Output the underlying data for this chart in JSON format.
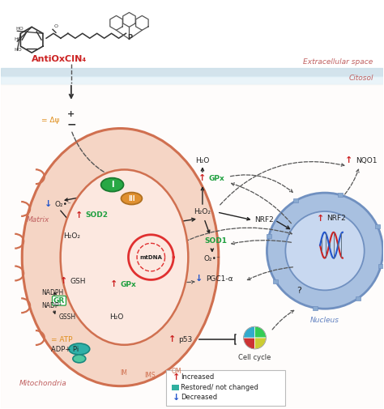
{
  "bg_color": "#ffffff",
  "extracellular_label": "Extracellular space",
  "citosol_label": "Citosol",
  "matrix_label": "Matrix",
  "mitochondria_label": "Mitochondria",
  "nucleus_label": "Nucleus",
  "IM_label": "IM",
  "IMS_label": "IMS",
  "OM_label": "OM",
  "antioxcin_label": "AntiOxCIN₄",
  "antioxcin_color": "#cc2222",
  "extracellular_color": "#c06060",
  "citosol_color": "#c06060",
  "matrix_color": "#c06060",
  "mitochondria_color": "#c06060",
  "nucleus_color": "#6080c0",
  "mito_fill": "#f5d5c5",
  "mito_fill2": "#fce8e0",
  "mito_stroke": "#d07050",
  "nucleus_fill": "#a8c0e0",
  "nucleus_fill2": "#c8d8f0",
  "nucleus_stroke": "#7090c0",
  "green_color": "#20a040",
  "orange_color": "#e09020",
  "red_color": "#cc2222",
  "blue_color": "#2255cc",
  "black_color": "#222222",
  "gray_color": "#888888",
  "legend_box_color": "#dddddd"
}
